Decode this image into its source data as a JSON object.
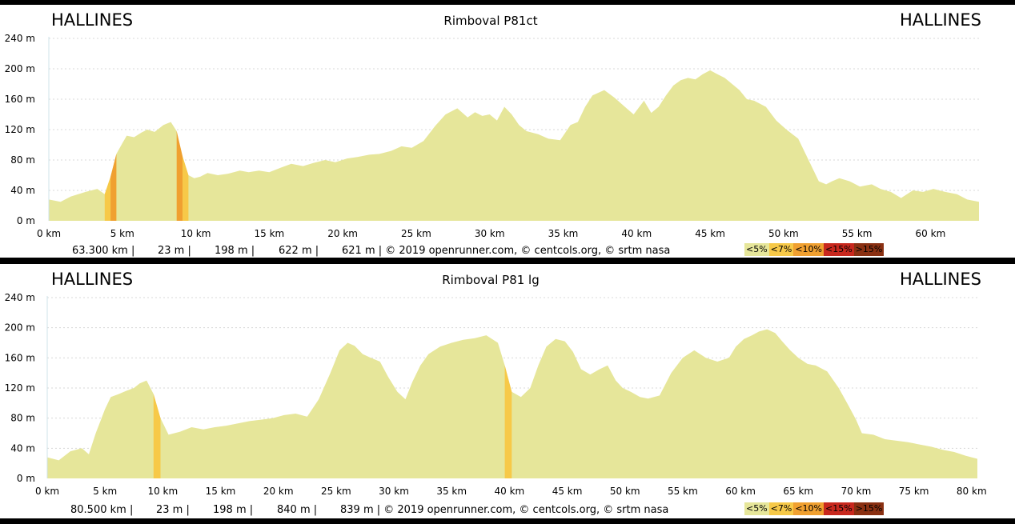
{
  "colors": {
    "flat": "#e6e69a",
    "c5": "#f7c948",
    "c7": "#f0a030",
    "c10": "#e06a1c",
    "c15": "#c8281e",
    "c20": "#8a3012",
    "grid": "#d8d8d8"
  },
  "chart_data": [
    {
      "type": "area",
      "title": "Rimboval P81ct",
      "start_label": "HALLINES",
      "end_label": "HALLINES",
      "x_unit": "km",
      "y_unit": "m",
      "xlim": [
        0,
        63.3
      ],
      "ylim": [
        0,
        240
      ],
      "x_ticks": [
        "0 km",
        "5 km",
        "10 km",
        "15 km",
        "20 km",
        "25 km",
        "30 km",
        "35 km",
        "40 km",
        "45 km",
        "50 km",
        "55 km",
        "60 km"
      ],
      "y_ticks": [
        "0 m",
        "40 m",
        "80 m",
        "120 m",
        "160 m",
        "200 m",
        "240 m"
      ],
      "stats": {
        "distance": "63.300 km |",
        "min_alt": "23 m |",
        "max_alt": "198 m |",
        "ascent": "622 m |",
        "descent": "621 m | © 2019 openrunner.com, © centcols.org, © srtm nasa"
      },
      "legend": [
        "<5%",
        "<7%",
        "<10%",
        "<15%",
        ">15%"
      ],
      "x": [
        0,
        0.8,
        1.5,
        2.5,
        3.3,
        3.8,
        4.2,
        4.6,
        5.0,
        5.3,
        5.8,
        6.3,
        6.7,
        7.2,
        7.8,
        8.3,
        8.7,
        9.1,
        9.5,
        9.9,
        10.3,
        10.8,
        11.5,
        12.2,
        13.0,
        13.6,
        14.3,
        15.0,
        15.8,
        16.5,
        17.3,
        18.0,
        18.8,
        19.5,
        20.3,
        21.0,
        21.8,
        22.5,
        23.3,
        24.0,
        24.7,
        25.5,
        26.3,
        27.0,
        27.8,
        28.5,
        29.0,
        29.5,
        30.0,
        30.5,
        31.0,
        31.5,
        32.0,
        32.5,
        33.3,
        34.0,
        34.8,
        35.5,
        36.0,
        36.5,
        37.0,
        37.8,
        38.5,
        39.2,
        39.8,
        40.5,
        41.0,
        41.5,
        42.0,
        42.5,
        43.0,
        43.5,
        44.0,
        44.5,
        45.0,
        45.5,
        46.0,
        46.5,
        47.0,
        47.5,
        48.0,
        48.8,
        49.5,
        50.2,
        51.0,
        51.8,
        52.4,
        52.9,
        53.3,
        53.8,
        54.5,
        55.2,
        56.0,
        56.6,
        57.3,
        58.0,
        58.8,
        59.5,
        60.2,
        61.0,
        61.8,
        62.5,
        63.3
      ],
      "y": [
        28,
        25,
        32,
        38,
        42,
        35,
        58,
        88,
        102,
        112,
        110,
        116,
        120,
        117,
        126,
        130,
        118,
        85,
        60,
        56,
        58,
        63,
        60,
        62,
        66,
        64,
        66,
        64,
        70,
        75,
        72,
        76,
        80,
        77,
        82,
        84,
        87,
        88,
        92,
        98,
        96,
        105,
        125,
        140,
        148,
        136,
        143,
        138,
        140,
        132,
        150,
        140,
        126,
        118,
        114,
        108,
        106,
        126,
        130,
        150,
        165,
        172,
        162,
        150,
        140,
        158,
        142,
        150,
        165,
        178,
        185,
        188,
        186,
        193,
        198,
        193,
        188,
        180,
        172,
        160,
        158,
        150,
        132,
        120,
        108,
        76,
        52,
        48,
        52,
        56,
        52,
        45,
        48,
        42,
        38,
        30,
        40,
        38,
        42,
        38,
        35,
        28,
        25
      ]
    },
    {
      "type": "area",
      "title": "Rimboval P81 lg",
      "start_label": "HALLINES",
      "end_label": "HALLINES",
      "x_unit": "km",
      "y_unit": "m",
      "xlim": [
        0,
        80.5
      ],
      "ylim": [
        0,
        240
      ],
      "x_ticks": [
        "0 km",
        "5 km",
        "10 km",
        "15 km",
        "20 km",
        "25 km",
        "30 km",
        "35 km",
        "40 km",
        "45 km",
        "50 km",
        "55 km",
        "60 km",
        "65 km",
        "70 km",
        "75 km",
        "80 km"
      ],
      "y_ticks": [
        "0 m",
        "40 m",
        "80 m",
        "120 m",
        "160 m",
        "200 m",
        "240 m"
      ],
      "stats": {
        "distance": "80.500 km |",
        "min_alt": "23 m |",
        "max_alt": "198 m |",
        "ascent": "840 m |",
        "descent": "839 m | © 2019 openrunner.com, © centcols.org, © srtm nasa"
      },
      "legend": [
        "<5%",
        "<7%",
        "<10%",
        "<15%",
        ">15%"
      ],
      "x": [
        0,
        1.0,
        2.0,
        3.0,
        3.6,
        4.2,
        5.0,
        5.5,
        6.2,
        6.8,
        7.5,
        8.0,
        8.6,
        9.2,
        9.8,
        10.5,
        11.5,
        12.5,
        13.5,
        14.5,
        15.5,
        16.5,
        17.5,
        18.5,
        19.5,
        20.5,
        21.5,
        22.5,
        23.5,
        24.5,
        25.3,
        26.0,
        26.6,
        27.3,
        28.0,
        28.8,
        29.5,
        30.3,
        31.0,
        31.6,
        32.3,
        33.0,
        34.0,
        35.0,
        36.0,
        37.0,
        38.0,
        39.0,
        39.6,
        40.2,
        41.0,
        41.8,
        42.5,
        43.2,
        44.0,
        44.8,
        45.5,
        46.2,
        47.0,
        47.8,
        48.5,
        49.2,
        49.8,
        50.5,
        51.3,
        52.0,
        53.0,
        54.0,
        55.0,
        56.0,
        57.0,
        58.0,
        59.0,
        59.6,
        60.3,
        61.0,
        61.6,
        62.3,
        63.0,
        63.6,
        64.3,
        65.0,
        65.8,
        66.5,
        67.5,
        68.5,
        69.3,
        70.0,
        70.5,
        71.5,
        72.5,
        73.5,
        74.5,
        75.5,
        76.5,
        77.5,
        78.5,
        79.5,
        80.5
      ],
      "y": [
        28,
        24,
        36,
        40,
        32,
        60,
        92,
        108,
        112,
        116,
        120,
        126,
        130,
        112,
        80,
        58,
        62,
        68,
        65,
        68,
        70,
        73,
        76,
        78,
        80,
        84,
        86,
        82,
        105,
        140,
        170,
        180,
        176,
        165,
        160,
        155,
        135,
        115,
        105,
        128,
        150,
        165,
        175,
        180,
        184,
        186,
        190,
        180,
        150,
        115,
        108,
        120,
        150,
        175,
        185,
        182,
        168,
        145,
        138,
        145,
        150,
        130,
        120,
        115,
        108,
        106,
        110,
        140,
        160,
        170,
        160,
        155,
        160,
        175,
        185,
        190,
        195,
        198,
        193,
        182,
        170,
        160,
        152,
        150,
        142,
        120,
        98,
        78,
        60,
        58,
        52,
        50,
        48,
        45,
        42,
        38,
        35,
        30,
        26
      ],
      "grade_note": ""
    }
  ]
}
